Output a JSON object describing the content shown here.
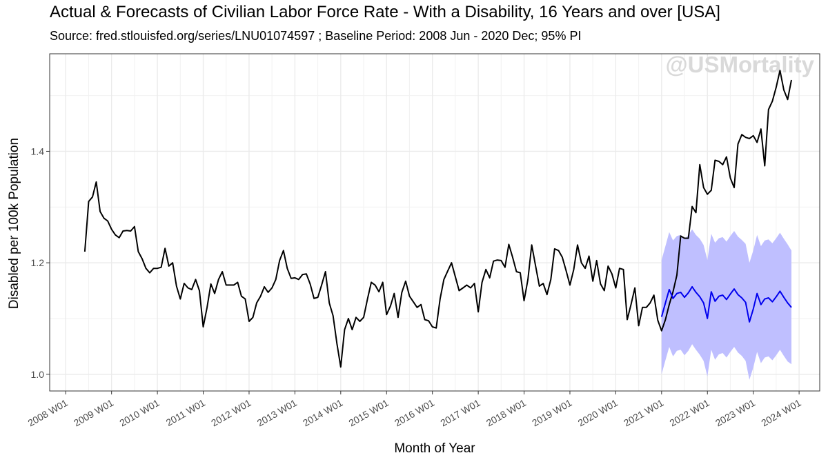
{
  "chart_data": {
    "type": "line",
    "title": "Actual & Forecasts of Civilian Labor Force Rate - With a Disability, 16 Years and over [USA]",
    "subtitle": "Source: fred.stlouisfed.org/series/LNU01074597 ; Baseline Period: 2008 Jun - 2020 Dec; 95% PI",
    "watermark": "@USMortality",
    "xlabel": "Month of Year",
    "ylabel": "Disabled per 100k Population",
    "xlim": [
      2007.65,
      2024.45
    ],
    "ylim": [
      0.97,
      1.575
    ],
    "y_ticks": [
      1.0,
      1.2,
      1.4
    ],
    "y_tick_labels": [
      "1.0",
      "1.2",
      "1.4"
    ],
    "x_ticks": [
      2008,
      2009,
      2010,
      2011,
      2012,
      2013,
      2014,
      2015,
      2016,
      2017,
      2018,
      2019,
      2020,
      2021,
      2022,
      2023,
      2024
    ],
    "x_tick_labels": [
      "2008 W01",
      "2009 W01",
      "2010 W01",
      "2011 W01",
      "2012 W01",
      "2013 W01",
      "2014 W01",
      "2015 W01",
      "2016 W01",
      "2017 W01",
      "2018 W01",
      "2019 W01",
      "2020 W01",
      "2021 W01",
      "2022 W01",
      "2023 W01",
      "2024 W01"
    ],
    "grid": true,
    "series": [
      {
        "name": "Actual",
        "color": "#000000",
        "start": [
          2008,
          6
        ],
        "values": [
          1.22,
          1.31,
          1.318,
          1.345,
          1.292,
          1.28,
          1.275,
          1.26,
          1.25,
          1.245,
          1.257,
          1.258,
          1.257,
          1.265,
          1.22,
          1.207,
          1.19,
          1.182,
          1.19,
          1.19,
          1.192,
          1.226,
          1.194,
          1.2,
          1.158,
          1.135,
          1.163,
          1.155,
          1.152,
          1.17,
          1.15,
          1.085,
          1.12,
          1.162,
          1.145,
          1.17,
          1.184,
          1.16,
          1.16,
          1.16,
          1.165,
          1.14,
          1.135,
          1.095,
          1.102,
          1.128,
          1.14,
          1.157,
          1.147,
          1.155,
          1.17,
          1.204,
          1.222,
          1.19,
          1.172,
          1.173,
          1.17,
          1.179,
          1.18,
          1.162,
          1.136,
          1.138,
          1.16,
          1.184,
          1.128,
          1.105,
          1.055,
          1.013,
          1.08,
          1.1,
          1.08,
          1.102,
          1.095,
          1.102,
          1.135,
          1.165,
          1.16,
          1.148,
          1.165,
          1.107,
          1.122,
          1.145,
          1.102,
          1.147,
          1.167,
          1.14,
          1.13,
          1.12,
          1.125,
          1.098,
          1.096,
          1.085,
          1.083,
          1.135,
          1.17,
          1.185,
          1.2,
          1.175,
          1.15,
          1.155,
          1.16,
          1.155,
          1.163,
          1.112,
          1.165,
          1.188,
          1.173,
          1.203,
          1.205,
          1.204,
          1.192,
          1.233,
          1.21,
          1.184,
          1.182,
          1.132,
          1.17,
          1.232,
          1.195,
          1.158,
          1.163,
          1.143,
          1.17,
          1.225,
          1.222,
          1.21,
          1.186,
          1.16,
          1.188,
          1.232,
          1.2,
          1.19,
          1.212,
          1.167,
          1.204,
          1.162,
          1.15,
          1.194,
          1.18,
          1.155,
          1.19,
          1.188,
          1.098,
          1.125,
          1.155,
          1.087,
          1.12,
          1.12,
          1.128,
          1.142,
          1.097,
          1.078,
          1.098,
          1.125,
          1.148,
          1.178,
          1.248,
          1.244,
          1.244,
          1.301,
          1.29,
          1.376,
          1.335,
          1.323,
          1.33,
          1.384,
          1.382,
          1.376,
          1.39,
          1.352,
          1.335,
          1.413,
          1.43,
          1.425,
          1.423,
          1.428,
          1.416,
          1.44,
          1.374,
          1.475,
          1.49,
          1.515,
          1.545,
          1.51,
          1.493,
          1.528
        ]
      },
      {
        "name": "Forecast",
        "color": "#0000ee",
        "start": [
          2021,
          1
        ],
        "values": [
          1.103,
          1.128,
          1.152,
          1.136,
          1.145,
          1.147,
          1.138,
          1.146,
          1.157,
          1.147,
          1.139,
          1.128,
          1.1,
          1.148,
          1.131,
          1.14,
          1.142,
          1.134,
          1.144,
          1.153,
          1.143,
          1.137,
          1.129,
          1.094,
          1.117,
          1.145,
          1.125,
          1.135,
          1.137,
          1.13,
          1.139,
          1.149,
          1.138,
          1.128,
          1.12
        ],
        "pi_upper": [
          1.205,
          1.23,
          1.255,
          1.24,
          1.248,
          1.25,
          1.242,
          1.25,
          1.26,
          1.25,
          1.243,
          1.232,
          1.205,
          1.252,
          1.236,
          1.244,
          1.246,
          1.238,
          1.248,
          1.257,
          1.247,
          1.241,
          1.234,
          1.2,
          1.222,
          1.25,
          1.23,
          1.24,
          1.242,
          1.235,
          1.244,
          1.254,
          1.243,
          1.233,
          1.222
        ],
        "pi_lower": [
          1.0,
          1.025,
          1.049,
          1.032,
          1.042,
          1.044,
          1.034,
          1.042,
          1.054,
          1.044,
          1.035,
          1.024,
          0.996,
          1.044,
          1.026,
          1.036,
          1.038,
          1.03,
          1.04,
          1.049,
          1.039,
          1.033,
          1.024,
          0.99,
          1.012,
          1.04,
          1.02,
          1.03,
          1.032,
          1.025,
          1.034,
          1.044,
          1.033,
          1.023,
          1.018
        ],
        "band_color": "#bfbfff"
      }
    ]
  }
}
